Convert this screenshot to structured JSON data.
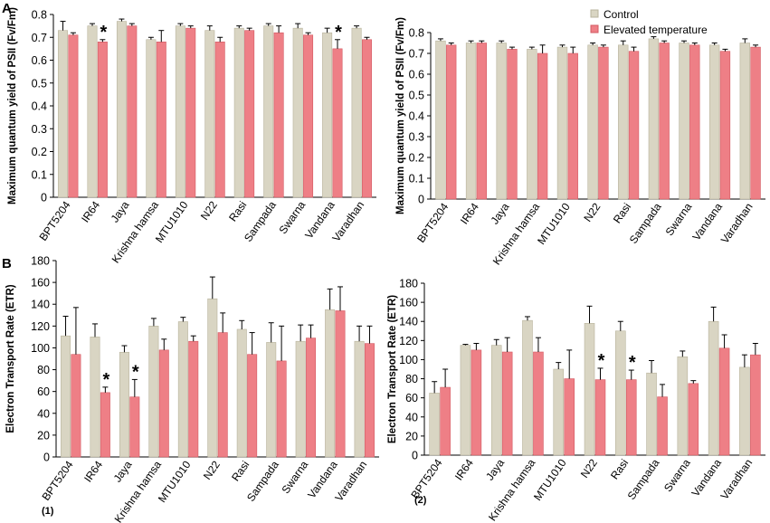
{
  "colors": {
    "control": "#d9d5c3",
    "control_edge": "#b8b39c",
    "elevated": "#ee7f86",
    "elevated_edge": "#d35a62"
  },
  "legend": {
    "control": "Control",
    "elevated": "Elevated temperature"
  },
  "labels": {
    "panel_a": "A",
    "panel_b": "B",
    "sub_1": "(1)",
    "sub_2": "(2)"
  },
  "chart_data": [
    {
      "id": "A1",
      "type": "bar",
      "title": "",
      "ylabel": "Maximum quantum yield of PSII (Fv/Fm)",
      "ylim": [
        0,
        0.8
      ],
      "yticks": [
        0,
        0.1,
        0.2,
        0.3,
        0.4,
        0.5,
        0.6,
        0.7,
        0.8
      ],
      "categories": [
        "BPT5204",
        "IR64",
        "Jaya",
        "Krishna hamsa",
        "MTU1010",
        "N22",
        "Rasi",
        "Sampada",
        "Swarna",
        "Vandana",
        "Varadhan"
      ],
      "series": [
        {
          "name": "Control",
          "values": [
            0.73,
            0.75,
            0.77,
            0.69,
            0.75,
            0.73,
            0.74,
            0.75,
            0.74,
            0.72,
            0.74
          ],
          "errors": [
            0.04,
            0.01,
            0.01,
            0.01,
            0.01,
            0.02,
            0.01,
            0.01,
            0.02,
            0.02,
            0.01
          ]
        },
        {
          "name": "Elevated temperature",
          "values": [
            0.71,
            0.68,
            0.75,
            0.68,
            0.74,
            0.68,
            0.73,
            0.72,
            0.71,
            0.65,
            0.69
          ],
          "errors": [
            0.01,
            0.01,
            0.01,
            0.05,
            0.01,
            0.02,
            0.01,
            0.03,
            0.01,
            0.04,
            0.01
          ]
        }
      ],
      "significant": [
        "IR64",
        "Vandana"
      ]
    },
    {
      "id": "A2",
      "type": "bar",
      "title": "",
      "ylabel": "Maximum quantum yield of PSII (Fv/Fm)",
      "ylim": [
        0,
        0.8
      ],
      "yticks": [
        0,
        0.1,
        0.2,
        0.3,
        0.4,
        0.5,
        0.6,
        0.7,
        0.8
      ],
      "categories": [
        "BPT5204",
        "IR64",
        "Jaya",
        "Krishna hamsa",
        "MTU1010",
        "N22",
        "Rasi",
        "Sampada",
        "Swarna",
        "Vandana",
        "Varadhan"
      ],
      "series": [
        {
          "name": "Control",
          "values": [
            0.76,
            0.75,
            0.75,
            0.72,
            0.73,
            0.74,
            0.74,
            0.77,
            0.75,
            0.74,
            0.75
          ],
          "errors": [
            0.01,
            0.01,
            0.01,
            0.01,
            0.01,
            0.01,
            0.02,
            0.01,
            0.01,
            0.01,
            0.02
          ]
        },
        {
          "name": "Elevated temperature",
          "values": [
            0.74,
            0.75,
            0.72,
            0.7,
            0.7,
            0.73,
            0.71,
            0.75,
            0.74,
            0.71,
            0.73
          ],
          "errors": [
            0.01,
            0.01,
            0.01,
            0.04,
            0.03,
            0.01,
            0.02,
            0.01,
            0.01,
            0.01,
            0.01
          ]
        }
      ],
      "significant": []
    },
    {
      "id": "B1",
      "type": "bar",
      "title": "",
      "ylabel": "Electron Transport Rate (ETR)",
      "ylim": [
        0,
        180
      ],
      "yticks": [
        0,
        20,
        40,
        60,
        80,
        100,
        120,
        140,
        160,
        180
      ],
      "categories": [
        "BPT5204",
        "IR64",
        "Jaya",
        "Krishna hamsa",
        "MTU1010",
        "N22",
        "Rasi",
        "Sampada",
        "Swarna",
        "Vandana",
        "Varadhan"
      ],
      "series": [
        {
          "name": "Control",
          "values": [
            111,
            110,
            96,
            120,
            124,
            145,
            117,
            105,
            106,
            135,
            106
          ],
          "errors": [
            18,
            12,
            6,
            7,
            4,
            20,
            8,
            18,
            15,
            19,
            14
          ]
        },
        {
          "name": "Elevated temperature",
          "values": [
            94,
            59,
            55,
            98,
            106,
            114,
            94,
            88,
            109,
            134,
            104
          ],
          "errors": [
            43,
            5,
            16,
            10,
            5,
            18,
            20,
            32,
            12,
            22,
            16
          ]
        }
      ],
      "significant": [
        "IR64",
        "Jaya"
      ]
    },
    {
      "id": "B2",
      "type": "bar",
      "title": "",
      "ylabel": "Electron Transport Rate (ETR)",
      "ylim": [
        0,
        180
      ],
      "yticks": [
        0,
        20,
        40,
        60,
        80,
        100,
        120,
        140,
        160,
        180
      ],
      "categories": [
        "BPT5204",
        "IR64",
        "Jaya",
        "Krishna hamsa",
        "MTU1010",
        "N22",
        "Rasi",
        "Sampada",
        "Swarna",
        "Vandana",
        "Varadhan"
      ],
      "series": [
        {
          "name": "Control",
          "values": [
            65,
            115,
            115,
            141,
            90,
            138,
            130,
            86,
            103,
            140,
            92
          ],
          "errors": [
            12,
            1,
            6,
            4,
            7,
            18,
            10,
            13,
            6,
            15,
            13
          ]
        },
        {
          "name": "Elevated temperature",
          "values": [
            71,
            110,
            108,
            108,
            80,
            79,
            79,
            61,
            75,
            112,
            105
          ],
          "errors": [
            19,
            7,
            15,
            15,
            30,
            12,
            10,
            13,
            3,
            14,
            12
          ]
        }
      ],
      "significant": [
        "N22",
        "Rasi"
      ]
    }
  ]
}
